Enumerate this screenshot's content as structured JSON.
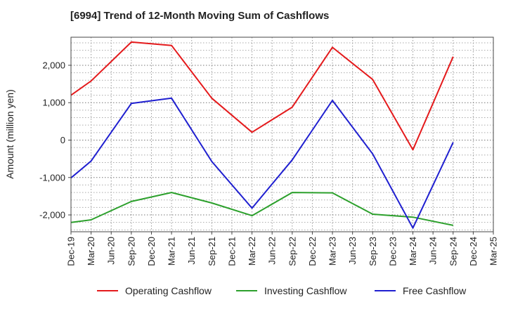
{
  "chart_data": {
    "type": "line",
    "title": "[6994]  Trend of 12-Month Moving Sum of Cashflows",
    "ylabel": "Amount (million yen)",
    "xlabel": "",
    "categories": [
      "Dec-19",
      "Mar-20",
      "Jun-20",
      "Sep-20",
      "Dec-20",
      "Mar-21",
      "Jun-21",
      "Sep-21",
      "Dec-21",
      "Mar-22",
      "Jun-22",
      "Sep-22",
      "Dec-22",
      "Mar-23",
      "Jun-23",
      "Sep-23",
      "Dec-23",
      "Mar-24",
      "Jun-24",
      "Sep-24",
      "Dec-24",
      "Mar-25"
    ],
    "ylim": [
      -2450,
      2750
    ],
    "yticks": [
      2000,
      1000,
      0,
      -1000,
      -2000
    ],
    "ytick_labels": [
      "2,000",
      "1,000",
      "0",
      "-1,000",
      "-2,000"
    ],
    "grid": true,
    "legend_position": "bottom",
    "series": [
      {
        "name": "Operating Cashflow",
        "color": "#e41a1c",
        "values": [
          1200,
          1580,
          null,
          2620,
          null,
          2530,
          null,
          1120,
          null,
          210,
          null,
          880,
          null,
          2480,
          null,
          1620,
          null,
          -260,
          null,
          2230,
          null,
          null
        ]
      },
      {
        "name": "Investing Cashflow",
        "color": "#2ca02c",
        "values": [
          -2200,
          -2130,
          null,
          -1640,
          null,
          -1400,
          null,
          -1680,
          null,
          -2020,
          null,
          -1400,
          null,
          -1410,
          null,
          -1980,
          null,
          -2060,
          null,
          -2280,
          null,
          null
        ]
      },
      {
        "name": "Free Cashflow",
        "color": "#1f1fd0",
        "values": [
          -1010,
          -560,
          null,
          980,
          null,
          1120,
          null,
          -570,
          null,
          -1820,
          null,
          -530,
          null,
          1060,
          null,
          -370,
          null,
          -2350,
          null,
          -60,
          null,
          null
        ]
      }
    ]
  }
}
